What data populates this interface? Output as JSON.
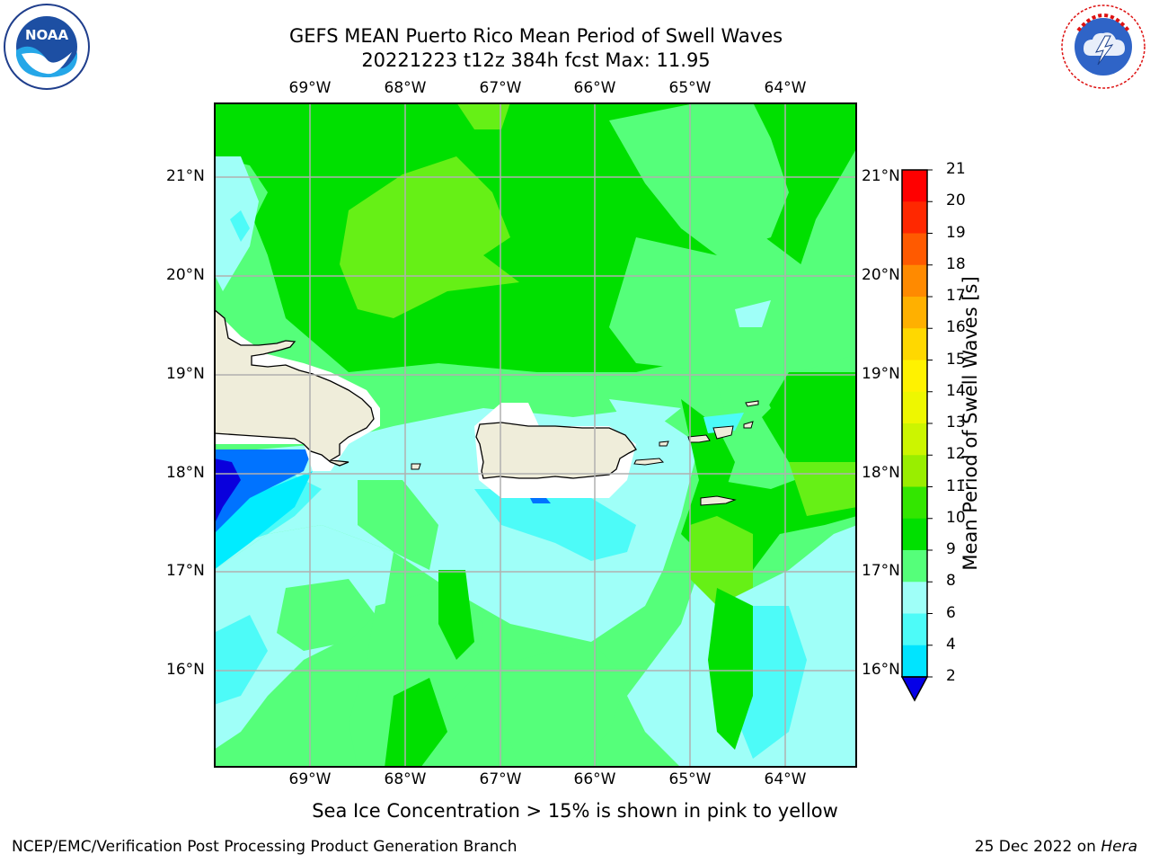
{
  "header": {
    "title_line1": "GEFS MEAN Puerto Rico Mean Period of Swell Waves",
    "title_line2": "20221223 t12z 384h fcst   Max: 11.95"
  },
  "logos": {
    "left": {
      "icon": "noaa-logo",
      "text": "NOAA",
      "ring_text": "NATIONAL OCEANIC AND ATMOSPHERIC ADMINISTRATION · U.S. DEPARTMENT OF COMMERCE"
    },
    "right": {
      "icon": "nws-logo",
      "ring_text": "NATIONAL WEATHER SERVICE"
    }
  },
  "map": {
    "lon_labels": [
      "69°W",
      "68°W",
      "67°W",
      "66°W",
      "65°W",
      "64°W"
    ],
    "lat_labels": [
      "21°N",
      "20°N",
      "19°N",
      "18°N",
      "17°N",
      "16°N"
    ],
    "colors": {
      "land": "#efedda",
      "grid": "#b0b0b0",
      "green_dark": "#00e000",
      "green_light": "#55ff7a",
      "lime": "#66f016",
      "cyan_light": "#9ffff8",
      "cyan": "#4dfbf8",
      "cyan_deep": "#00ecff",
      "blue": "#0073ff",
      "navy": "#0a00dc"
    }
  },
  "colorbar": {
    "label": "Mean Period of Swell Waves [s]",
    "ticks": [
      "2",
      "4",
      "6",
      "8",
      "9",
      "10",
      "11",
      "12",
      "13",
      "14",
      "15",
      "16",
      "17",
      "18",
      "19",
      "20",
      "21"
    ],
    "colors": [
      "#0500e8",
      "#0073ff",
      "#00e4ff",
      "#4dfbf8",
      "#9ffff8",
      "#55ff7a",
      "#00e000",
      "#33e600",
      "#99ee00",
      "#ccf500",
      "#eef700",
      "#fff200",
      "#ffd800",
      "#ffb000",
      "#ff8a00",
      "#ff5a00",
      "#ff2800",
      "#ff0000"
    ]
  },
  "caption": "Sea Ice Concentration > 15% is shown in pink to yellow",
  "footer": {
    "left": "NCEP/EMC/Verification Post Processing Product Generation Branch",
    "right_date": "25 Dec 2022 on ",
    "right_machine": "Hera"
  }
}
